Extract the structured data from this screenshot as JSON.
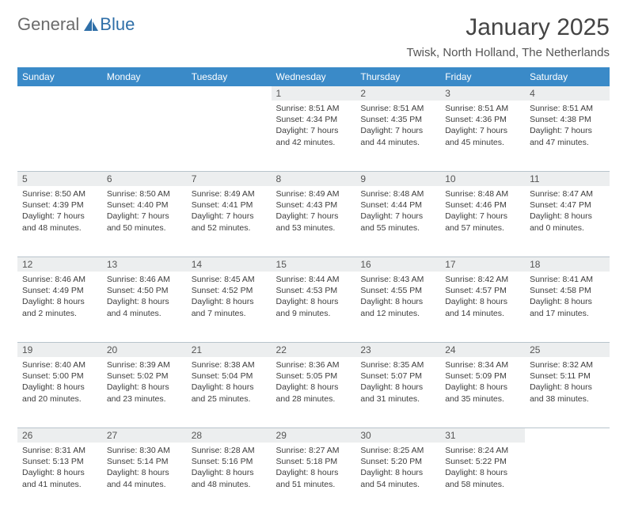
{
  "logo": {
    "text1": "General",
    "text2": "Blue"
  },
  "title": "January 2025",
  "location": "Twisk, North Holland, The Netherlands",
  "colors": {
    "header_bg": "#3a8ac8",
    "header_text": "#ffffff",
    "daynum_bg": "#eceeef",
    "row_divider": "#3a6a90",
    "logo_gray": "#6b6b6b",
    "logo_blue": "#2f6fa8"
  },
  "dayHeaders": [
    "Sunday",
    "Monday",
    "Tuesday",
    "Wednesday",
    "Thursday",
    "Friday",
    "Saturday"
  ],
  "weeks": [
    [
      null,
      null,
      null,
      {
        "n": "1",
        "sunrise": "8:51 AM",
        "sunset": "4:34 PM",
        "dl1": "7 hours",
        "dl2": "and 42 minutes."
      },
      {
        "n": "2",
        "sunrise": "8:51 AM",
        "sunset": "4:35 PM",
        "dl1": "7 hours",
        "dl2": "and 44 minutes."
      },
      {
        "n": "3",
        "sunrise": "8:51 AM",
        "sunset": "4:36 PM",
        "dl1": "7 hours",
        "dl2": "and 45 minutes."
      },
      {
        "n": "4",
        "sunrise": "8:51 AM",
        "sunset": "4:38 PM",
        "dl1": "7 hours",
        "dl2": "and 47 minutes."
      }
    ],
    [
      {
        "n": "5",
        "sunrise": "8:50 AM",
        "sunset": "4:39 PM",
        "dl1": "7 hours",
        "dl2": "and 48 minutes."
      },
      {
        "n": "6",
        "sunrise": "8:50 AM",
        "sunset": "4:40 PM",
        "dl1": "7 hours",
        "dl2": "and 50 minutes."
      },
      {
        "n": "7",
        "sunrise": "8:49 AM",
        "sunset": "4:41 PM",
        "dl1": "7 hours",
        "dl2": "and 52 minutes."
      },
      {
        "n": "8",
        "sunrise": "8:49 AM",
        "sunset": "4:43 PM",
        "dl1": "7 hours",
        "dl2": "and 53 minutes."
      },
      {
        "n": "9",
        "sunrise": "8:48 AM",
        "sunset": "4:44 PM",
        "dl1": "7 hours",
        "dl2": "and 55 minutes."
      },
      {
        "n": "10",
        "sunrise": "8:48 AM",
        "sunset": "4:46 PM",
        "dl1": "7 hours",
        "dl2": "and 57 minutes."
      },
      {
        "n": "11",
        "sunrise": "8:47 AM",
        "sunset": "4:47 PM",
        "dl1": "8 hours",
        "dl2": "and 0 minutes."
      }
    ],
    [
      {
        "n": "12",
        "sunrise": "8:46 AM",
        "sunset": "4:49 PM",
        "dl1": "8 hours",
        "dl2": "and 2 minutes."
      },
      {
        "n": "13",
        "sunrise": "8:46 AM",
        "sunset": "4:50 PM",
        "dl1": "8 hours",
        "dl2": "and 4 minutes."
      },
      {
        "n": "14",
        "sunrise": "8:45 AM",
        "sunset": "4:52 PM",
        "dl1": "8 hours",
        "dl2": "and 7 minutes."
      },
      {
        "n": "15",
        "sunrise": "8:44 AM",
        "sunset": "4:53 PM",
        "dl1": "8 hours",
        "dl2": "and 9 minutes."
      },
      {
        "n": "16",
        "sunrise": "8:43 AM",
        "sunset": "4:55 PM",
        "dl1": "8 hours",
        "dl2": "and 12 minutes."
      },
      {
        "n": "17",
        "sunrise": "8:42 AM",
        "sunset": "4:57 PM",
        "dl1": "8 hours",
        "dl2": "and 14 minutes."
      },
      {
        "n": "18",
        "sunrise": "8:41 AM",
        "sunset": "4:58 PM",
        "dl1": "8 hours",
        "dl2": "and 17 minutes."
      }
    ],
    [
      {
        "n": "19",
        "sunrise": "8:40 AM",
        "sunset": "5:00 PM",
        "dl1": "8 hours",
        "dl2": "and 20 minutes."
      },
      {
        "n": "20",
        "sunrise": "8:39 AM",
        "sunset": "5:02 PM",
        "dl1": "8 hours",
        "dl2": "and 23 minutes."
      },
      {
        "n": "21",
        "sunrise": "8:38 AM",
        "sunset": "5:04 PM",
        "dl1": "8 hours",
        "dl2": "and 25 minutes."
      },
      {
        "n": "22",
        "sunrise": "8:36 AM",
        "sunset": "5:05 PM",
        "dl1": "8 hours",
        "dl2": "and 28 minutes."
      },
      {
        "n": "23",
        "sunrise": "8:35 AM",
        "sunset": "5:07 PM",
        "dl1": "8 hours",
        "dl2": "and 31 minutes."
      },
      {
        "n": "24",
        "sunrise": "8:34 AM",
        "sunset": "5:09 PM",
        "dl1": "8 hours",
        "dl2": "and 35 minutes."
      },
      {
        "n": "25",
        "sunrise": "8:32 AM",
        "sunset": "5:11 PM",
        "dl1": "8 hours",
        "dl2": "and 38 minutes."
      }
    ],
    [
      {
        "n": "26",
        "sunrise": "8:31 AM",
        "sunset": "5:13 PM",
        "dl1": "8 hours",
        "dl2": "and 41 minutes."
      },
      {
        "n": "27",
        "sunrise": "8:30 AM",
        "sunset": "5:14 PM",
        "dl1": "8 hours",
        "dl2": "and 44 minutes."
      },
      {
        "n": "28",
        "sunrise": "8:28 AM",
        "sunset": "5:16 PM",
        "dl1": "8 hours",
        "dl2": "and 48 minutes."
      },
      {
        "n": "29",
        "sunrise": "8:27 AM",
        "sunset": "5:18 PM",
        "dl1": "8 hours",
        "dl2": "and 51 minutes."
      },
      {
        "n": "30",
        "sunrise": "8:25 AM",
        "sunset": "5:20 PM",
        "dl1": "8 hours",
        "dl2": "and 54 minutes."
      },
      {
        "n": "31",
        "sunrise": "8:24 AM",
        "sunset": "5:22 PM",
        "dl1": "8 hours",
        "dl2": "and 58 minutes."
      },
      null
    ]
  ],
  "labels": {
    "sunrise": "Sunrise:",
    "sunset": "Sunset:",
    "daylight": "Daylight:"
  }
}
